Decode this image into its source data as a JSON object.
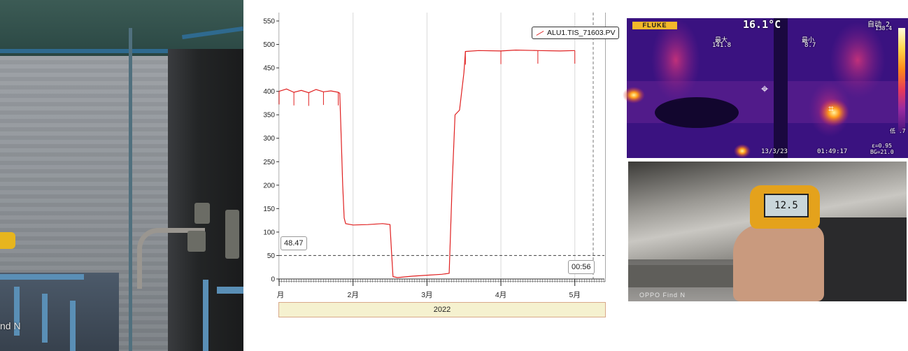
{
  "photo_left": {
    "watermark": "nd N"
  },
  "chart_data": {
    "type": "line",
    "series": [
      {
        "name": "ALU1.TIS_71603.PV",
        "color": "#e02020",
        "points": [
          [
            0.0,
            400
          ],
          [
            0.1,
            405
          ],
          [
            0.2,
            398
          ],
          [
            0.3,
            402
          ],
          [
            0.4,
            397
          ],
          [
            0.5,
            404
          ],
          [
            0.6,
            399
          ],
          [
            0.7,
            401
          ],
          [
            0.8,
            398
          ],
          [
            0.82,
            396
          ],
          [
            0.84,
            300
          ],
          [
            0.86,
            200
          ],
          [
            0.88,
            130
          ],
          [
            0.9,
            118
          ],
          [
            1.0,
            115
          ],
          [
            1.2,
            116
          ],
          [
            1.4,
            118
          ],
          [
            1.5,
            116
          ],
          [
            1.52,
            60
          ],
          [
            1.54,
            5
          ],
          [
            1.6,
            3
          ],
          [
            1.8,
            6
          ],
          [
            2.0,
            8
          ],
          [
            2.2,
            10
          ],
          [
            2.3,
            12
          ],
          [
            2.34,
            200
          ],
          [
            2.38,
            350
          ],
          [
            2.44,
            360
          ],
          [
            2.5,
            440
          ],
          [
            2.52,
            485
          ],
          [
            2.7,
            487
          ],
          [
            3.0,
            486
          ],
          [
            3.2,
            488
          ],
          [
            3.5,
            487
          ],
          [
            3.8,
            486
          ],
          [
            4.0,
            487
          ]
        ]
      }
    ],
    "x_ticks": [
      "月",
      "2月",
      "3月",
      "4月",
      "5月"
    ],
    "x_tick_positions": [
      0,
      1,
      2,
      3,
      4
    ],
    "xlim": [
      0,
      4.4
    ],
    "y_ticks": [
      "0",
      "50",
      "100",
      "150",
      "200",
      "250",
      "300",
      "350",
      "400",
      "450",
      "500",
      "550"
    ],
    "ylim": [
      0,
      550
    ],
    "reference_line": 50,
    "value_label": "48.47",
    "time_label": "00:56",
    "year_label": "2022",
    "legend": "ALU1.TIS_71603.PV",
    "grid": true
  },
  "thermal": {
    "brand": "FLUKE",
    "center_temp": "16.1°C",
    "mode": "自动 2",
    "scale_max": "138.4",
    "max_label": "最大",
    "max_value": "141.8",
    "min_label": "最小",
    "min_value": "8.7",
    "low_label": "低 .7",
    "date": "13/3/23",
    "time": "01:49:17",
    "emissivity": "ε=0.95",
    "background": "BG=21.0"
  },
  "thermometer": {
    "reading": "12.5",
    "watermark": "OPPO Find N"
  }
}
